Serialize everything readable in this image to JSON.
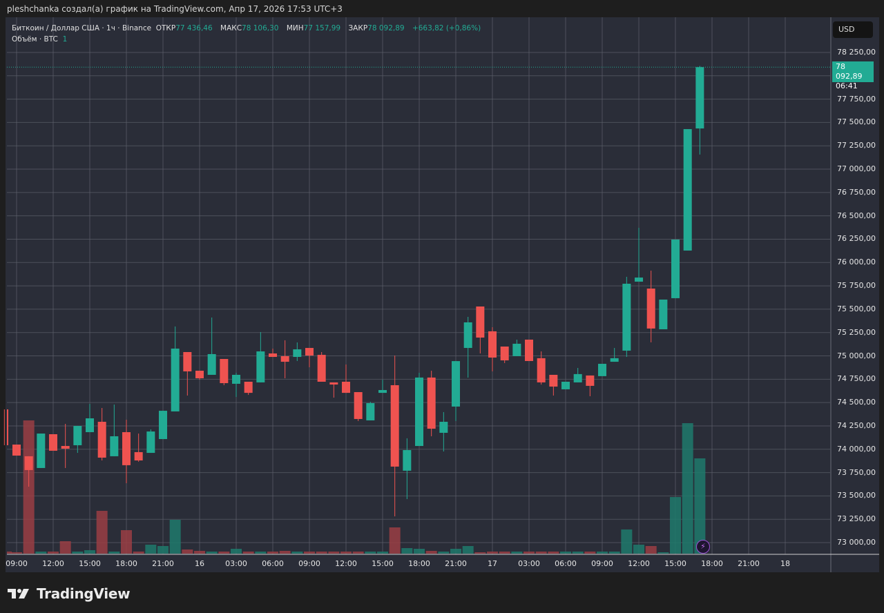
{
  "header": {
    "attribution": "pleshchanka создал(а) график на TradingView.com, Апр 17, 2026 17:53 UTC+3"
  },
  "legend": {
    "symbol": "Биткоин / Доллар США · 1ч · Binance",
    "open_label": "ОТКР",
    "open": "77 436,46",
    "high_label": "МАКС",
    "high": "78 106,30",
    "low_label": "МИН",
    "low": "77 157,99",
    "close_label": "ЗАКР",
    "close": "78 092,89",
    "change": "+663,82 (+0,86%)",
    "volume_label": "Объём · BTC",
    "volume_value": "1"
  },
  "price_axis": {
    "currency": "USD",
    "current_price": "78 092,89",
    "countdown": "06:41",
    "ticks": [
      "78 250,00",
      "78 000,00",
      "77 750,00",
      "77 500,00",
      "77 250,00",
      "77 000,00",
      "76 750,00",
      "76 500,00",
      "76 250,00",
      "76 000,00",
      "75 750,00",
      "75 500,00",
      "75 250,00",
      "75 000,00",
      "74 750,00",
      "74 500,00",
      "74 250,00",
      "74 000,00",
      "73 750,00",
      "73 500,00",
      "73 250,00",
      "73 000,00"
    ]
  },
  "time_axis": {
    "ticks": [
      "09:00",
      "12:00",
      "15:00",
      "18:00",
      "21:00",
      "16",
      "03:00",
      "06:00",
      "09:00",
      "12:00",
      "15:00",
      "18:00",
      "21:00",
      "17",
      "03:00",
      "06:00",
      "09:00",
      "12:00",
      "15:00",
      "18:00",
      "21:00",
      "18"
    ]
  },
  "branding": {
    "logo_text": "TradingView"
  },
  "icons": {
    "alert": "lightning-icon"
  },
  "colors": {
    "up": "#22ab94",
    "down": "#f23645",
    "background": "#2a2d38",
    "grid": "#5d606b"
  },
  "chart_data": {
    "type": "candlestick",
    "interval": "1h",
    "ylim": [
      72900,
      78350
    ],
    "x_start": "Apr 15 08:00",
    "candles": [
      [
        74427,
        74427,
        74043,
        74043
      ],
      [
        74050,
        74050,
        73932,
        73932
      ],
      [
        73925,
        73925,
        73599,
        73777
      ],
      [
        73799,
        74168,
        73799,
        74168
      ],
      [
        74161,
        74161,
        73984,
        73984
      ],
      [
        74035,
        74272,
        73799,
        74006
      ],
      [
        74043,
        74250,
        73961,
        74250
      ],
      [
        74183,
        74486,
        74183,
        74331
      ],
      [
        74294,
        74442,
        73880,
        73910
      ],
      [
        73925,
        74479,
        73925,
        74139
      ],
      [
        74183,
        74316,
        73636,
        73829
      ],
      [
        73969,
        74168,
        73866,
        73880
      ],
      [
        73961,
        74213,
        73961,
        74190
      ],
      [
        74109,
        74412,
        74109,
        74412
      ],
      [
        74405,
        75315,
        74405,
        75078
      ],
      [
        75041,
        75041,
        74575,
        74834
      ],
      [
        74841,
        74841,
        74745,
        74760
      ],
      [
        74797,
        75411,
        74797,
        75019
      ],
      [
        74967,
        74967,
        74686,
        74708
      ],
      [
        74701,
        74819,
        74560,
        74797
      ],
      [
        74723,
        74723,
        74582,
        74604
      ],
      [
        74716,
        75255,
        74716,
        75048
      ],
      [
        75026,
        75078,
        74989,
        74989
      ],
      [
        74997,
        75167,
        74760,
        74937
      ],
      [
        74989,
        75144,
        74945,
        75070
      ],
      [
        75085,
        75085,
        74878,
        75004
      ],
      [
        75011,
        75041,
        74723,
        74723
      ],
      [
        74716,
        74716,
        74553,
        74693
      ],
      [
        74723,
        74908,
        74604,
        74604
      ],
      [
        74612,
        74612,
        74302,
        74324
      ],
      [
        74309,
        74508,
        74309,
        74494
      ],
      [
        74604,
        74745,
        74604,
        74634
      ],
      [
        74686,
        75004,
        73281,
        73814
      ],
      [
        73770,
        74117,
        73466,
        73991
      ],
      [
        74035,
        74819,
        74035,
        74768
      ],
      [
        74768,
        74841,
        74139,
        74220
      ],
      [
        74176,
        74398,
        73976,
        74294
      ],
      [
        74457,
        74944,
        74302,
        74944
      ],
      [
        75085,
        75418,
        74767,
        75359
      ],
      [
        75529,
        75529,
        75026,
        75196
      ],
      [
        75263,
        75307,
        74834,
        74982
      ],
      [
        75100,
        75100,
        74923,
        74952
      ],
      [
        74997,
        75174,
        74997,
        75130
      ],
      [
        75174,
        75174,
        74945,
        74945
      ],
      [
        74975,
        75048,
        74693,
        74716
      ],
      [
        74797,
        74797,
        74575,
        74671
      ],
      [
        74642,
        74723,
        74642,
        74723
      ],
      [
        74716,
        74871,
        74716,
        74805
      ],
      [
        74790,
        74790,
        74568,
        74679
      ],
      [
        74783,
        74915,
        74783,
        74915
      ],
      [
        74937,
        75085,
        74937,
        74975
      ],
      [
        75056,
        75847,
        74989,
        75773
      ],
      [
        75795,
        76372,
        75795,
        75839
      ],
      [
        75721,
        75913,
        75145,
        75293
      ],
      [
        75285,
        75603,
        75285,
        75603
      ],
      [
        75618,
        76246,
        75618,
        76246
      ],
      [
        76128,
        77429,
        76128,
        77429
      ],
      [
        77436,
        78106,
        77157,
        78093
      ]
    ],
    "candle_fields": [
      "open",
      "high",
      "low",
      "close"
    ],
    "volume_relative": [
      3,
      2,
      193,
      3,
      3,
      18,
      3,
      5,
      62,
      3,
      34,
      3,
      13,
      11,
      49,
      6,
      4,
      3,
      3,
      7,
      3,
      3,
      3,
      4,
      3,
      3,
      3,
      3,
      3,
      3,
      3,
      3,
      38,
      8,
      7,
      4,
      3,
      7,
      11,
      2,
      3,
      3,
      3,
      3,
      3,
      3,
      3,
      3,
      3,
      3,
      3,
      35,
      13,
      11,
      2,
      82,
      189,
      138
    ]
  }
}
